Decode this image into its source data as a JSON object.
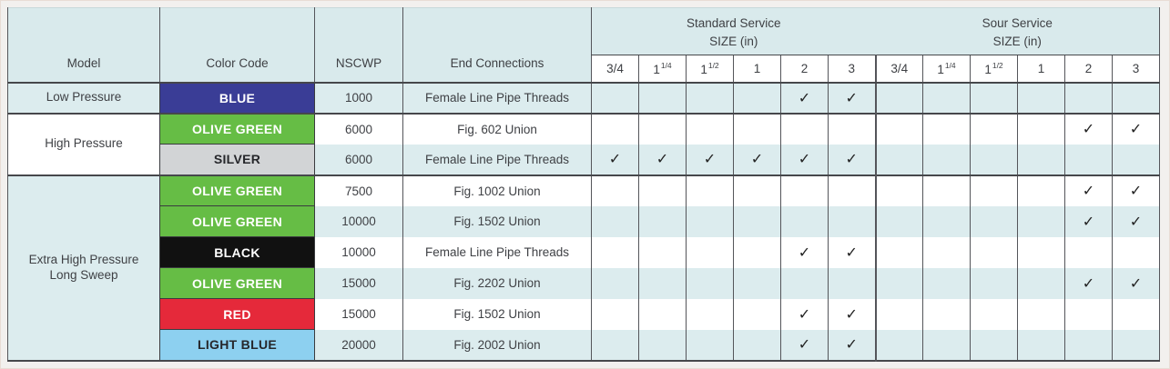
{
  "table": {
    "headers": {
      "model": "Model",
      "color_code": "Color Code",
      "nscwp": "NSCWP",
      "end_connections": "End Connections",
      "standard_service": "Standard Service",
      "sour_service": "Sour Service",
      "size_label": "SIZE (in)",
      "sizes": [
        {
          "base": "3/4",
          "sup": ""
        },
        {
          "base": "1",
          "sup": "1/4"
        },
        {
          "base": "1",
          "sup": "1/2"
        },
        {
          "base": "1",
          "sup": ""
        },
        {
          "base": "2",
          "sup": ""
        },
        {
          "base": "3",
          "sup": ""
        }
      ]
    },
    "check_mark": "✓",
    "colors": {
      "stripe": "#dcecee",
      "header_bg": "#d9eaec",
      "border_dark": "#54555a"
    },
    "groups": [
      {
        "model": "Low Pressure",
        "rows": [
          {
            "color_code": "BLUE",
            "color_bg": "#3a3d96",
            "color_text": "#ffffff",
            "nscwp": "1000",
            "end_connections": "Female Line Pipe Threads",
            "standard": [
              false,
              false,
              false,
              false,
              true,
              true
            ],
            "sour": [
              false,
              false,
              false,
              false,
              false,
              false
            ]
          }
        ]
      },
      {
        "model": "High Pressure",
        "rows": [
          {
            "color_code": "OLIVE GREEN",
            "color_bg": "#66bd45",
            "color_text": "#ffffff",
            "nscwp": "6000",
            "end_connections": "Fig. 602 Union",
            "standard": [
              false,
              false,
              false,
              false,
              false,
              false
            ],
            "sour": [
              false,
              false,
              false,
              false,
              true,
              true
            ]
          },
          {
            "color_code": "SILVER",
            "color_bg": "#d2d4d6",
            "color_text": "#26272b",
            "nscwp": "6000",
            "end_connections": "Female Line Pipe Threads",
            "standard": [
              true,
              true,
              true,
              true,
              true,
              true
            ],
            "sour": [
              false,
              false,
              false,
              false,
              false,
              false
            ]
          }
        ]
      },
      {
        "model": "Extra High Pressure Long Sweep",
        "rows": [
          {
            "color_code": "OLIVE GREEN",
            "color_bg": "#66bd45",
            "color_text": "#ffffff",
            "nscwp": "7500",
            "end_connections": "Fig. 1002 Union",
            "standard": [
              false,
              false,
              false,
              false,
              false,
              false
            ],
            "sour": [
              false,
              false,
              false,
              false,
              true,
              true
            ]
          },
          {
            "color_code": "OLIVE GREEN",
            "color_bg": "#66bd45",
            "color_text": "#ffffff",
            "nscwp": "10000",
            "end_connections": "Fig. 1502 Union",
            "standard": [
              false,
              false,
              false,
              false,
              false,
              false
            ],
            "sour": [
              false,
              false,
              false,
              false,
              true,
              true
            ]
          },
          {
            "color_code": "BLACK",
            "color_bg": "#111111",
            "color_text": "#ffffff",
            "nscwp": "10000",
            "end_connections": "Female Line Pipe Threads",
            "standard": [
              false,
              false,
              false,
              false,
              true,
              true
            ],
            "sour": [
              false,
              false,
              false,
              false,
              false,
              false
            ]
          },
          {
            "color_code": "OLIVE GREEN",
            "color_bg": "#66bd45",
            "color_text": "#ffffff",
            "nscwp": "15000",
            "end_connections": "Fig. 2202 Union",
            "standard": [
              false,
              false,
              false,
              false,
              false,
              false
            ],
            "sour": [
              false,
              false,
              false,
              false,
              true,
              true
            ]
          },
          {
            "color_code": "RED",
            "color_bg": "#e5293a",
            "color_text": "#ffffff",
            "nscwp": "15000",
            "end_connections": "Fig. 1502 Union",
            "standard": [
              false,
              false,
              false,
              false,
              true,
              true
            ],
            "sour": [
              false,
              false,
              false,
              false,
              false,
              false
            ]
          },
          {
            "color_code": "LIGHT BLUE",
            "color_bg": "#8dd0f0",
            "color_text": "#26272b",
            "nscwp": "20000",
            "end_connections": "Fig. 2002 Union",
            "standard": [
              false,
              false,
              false,
              false,
              true,
              true
            ],
            "sour": [
              false,
              false,
              false,
              false,
              false,
              false
            ]
          }
        ]
      }
    ]
  }
}
